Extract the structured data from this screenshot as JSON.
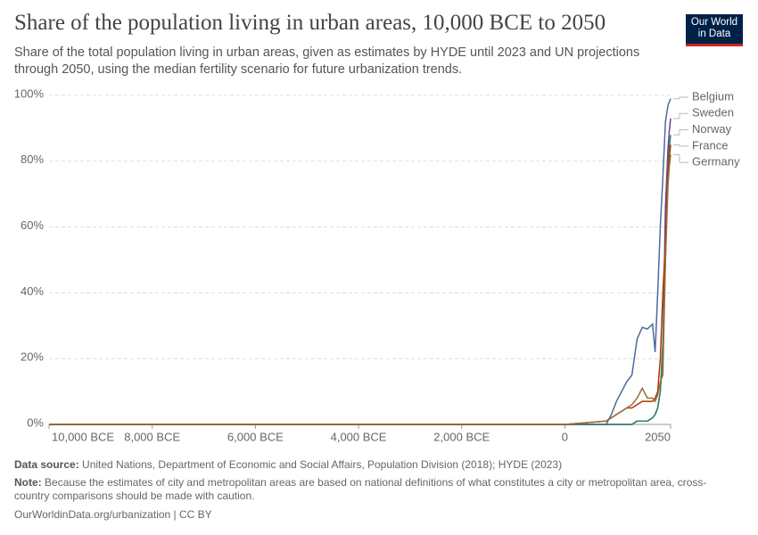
{
  "chart_data": {
    "type": "line",
    "title": "Share of the population living in urban areas, 10,000 BCE to 2050",
    "subtitle": "Share of the total population living in urban areas, given as estimates by HYDE until 2023 and UN projections through 2050, using the median fertility scenario for future urbanization trends.",
    "x": [
      -10000,
      0,
      800,
      900,
      1000,
      1100,
      1200,
      1300,
      1400,
      1500,
      1600,
      1700,
      1750,
      1800,
      1850,
      1900,
      1950,
      2000,
      2023,
      2050
    ],
    "series": [
      {
        "name": "Belgium",
        "color": "#4c6a9c",
        "values": [
          0,
          0,
          0,
          3,
          7,
          10,
          13,
          15,
          26,
          29.5,
          29,
          30.5,
          22,
          40,
          60,
          75,
          92,
          97,
          98,
          99
        ]
      },
      {
        "name": "Sweden",
        "color": "#6d3e91",
        "values": [
          0,
          0,
          0,
          0,
          0,
          0,
          0,
          0,
          1,
          1,
          1,
          2,
          3,
          5,
          10,
          22,
          66,
          84,
          89,
          93
        ]
      },
      {
        "name": "Norway",
        "color": "#2c8465",
        "values": [
          0,
          0,
          0,
          0,
          0,
          0,
          0,
          0,
          1,
          1,
          1,
          2,
          3,
          5,
          10,
          25,
          50,
          79,
          84,
          88
        ]
      },
      {
        "name": "France",
        "color": "#b13507",
        "values": [
          0,
          0,
          1,
          2,
          3,
          4,
          5,
          5,
          6,
          7,
          7,
          7,
          8,
          10,
          20,
          40,
          55,
          77,
          81,
          85
        ]
      },
      {
        "name": "Germany",
        "color": "#996d39",
        "values": [
          0,
          0,
          1,
          2,
          3,
          4,
          5,
          6,
          8,
          11,
          8,
          8,
          7,
          9,
          13,
          15,
          50,
          73,
          78,
          82
        ]
      }
    ],
    "xlim": [
      -10000,
      2050
    ],
    "xticks": [
      {
        "value": -10000,
        "label": "10,000 BCE"
      },
      {
        "value": -8000,
        "label": "8,000 BCE"
      },
      {
        "value": -6000,
        "label": "6,000 BCE"
      },
      {
        "value": -4000,
        "label": "4,000 BCE"
      },
      {
        "value": -2000,
        "label": "2,000 BCE"
      },
      0,
      2050
    ],
    "ylim": [
      0,
      100
    ],
    "yticks": [
      {
        "value": 0,
        "label": "0%"
      },
      {
        "value": 20,
        "label": "20%"
      },
      {
        "value": 40,
        "label": "40%"
      },
      {
        "value": 60,
        "label": "60%"
      },
      {
        "value": 80,
        "label": "80%"
      },
      {
        "value": 100,
        "label": "100%"
      }
    ],
    "grid": true,
    "source_label": "Data source:",
    "source": "United Nations, Department of Economic and Social Affairs, Population Division (2018); HYDE (2023)",
    "note_label": "Note:",
    "note": "Because the estimates of city and metropolitan areas are based on national definitions of what constitutes a city or metropolitan area, cross-country comparisons should be made with caution.",
    "url": "OurWorldinData.org/urbanization | CC BY"
  },
  "logo": [
    "Our World",
    "in Data"
  ]
}
